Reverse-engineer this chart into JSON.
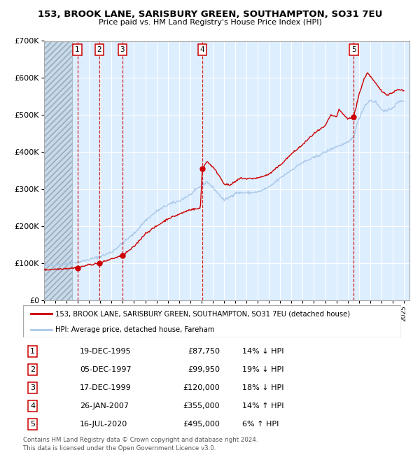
{
  "title": "153, BROOK LANE, SARISBURY GREEN, SOUTHAMPTON, SO31 7EU",
  "subtitle": "Price paid vs. HM Land Registry's House Price Index (HPI)",
  "legend_line1": "153, BROOK LANE, SARISBURY GREEN, SOUTHAMPTON, SO31 7EU (detached house)",
  "legend_line2": "HPI: Average price, detached house, Fareham",
  "footer1": "Contains HM Land Registry data © Crown copyright and database right 2024.",
  "footer2": "This data is licensed under the Open Government Licence v3.0.",
  "hpi_color": "#aac8e8",
  "price_color": "#cc0000",
  "dashed_color": "#cc0000",
  "background_plot": "#ddeeff",
  "ylim": [
    0,
    700000
  ],
  "yticks": [
    0,
    100000,
    200000,
    300000,
    400000,
    500000,
    600000,
    700000
  ],
  "ytick_labels": [
    "£0",
    "£100K",
    "£200K",
    "£300K",
    "£400K",
    "£500K",
    "£600K",
    "£700K"
  ],
  "xmin": 1993,
  "xmax": 2025.5,
  "transactions": [
    {
      "num": 1,
      "price": 87750,
      "x_year": 1995.96
    },
    {
      "num": 2,
      "price": 99950,
      "x_year": 1997.92
    },
    {
      "num": 3,
      "price": 120000,
      "x_year": 1999.96
    },
    {
      "num": 4,
      "price": 355000,
      "x_year": 2007.07
    },
    {
      "num": 5,
      "price": 495000,
      "x_year": 2020.54
    }
  ],
  "table_rows": [
    {
      "num": 1,
      "date": "19-DEC-1995",
      "price": "£87,750",
      "pct": "14% ↓ HPI"
    },
    {
      "num": 2,
      "date": "05-DEC-1997",
      "price": "£99,950",
      "pct": "19% ↓ HPI"
    },
    {
      "num": 3,
      "date": "17-DEC-1999",
      "price": "£120,000",
      "pct": "18% ↓ HPI"
    },
    {
      "num": 4,
      "date": "26-JAN-2007",
      "price": "£355,000",
      "pct": "14% ↑ HPI"
    },
    {
      "num": 5,
      "date": "16-JUL-2020",
      "price": "£495,000",
      "pct": "6% ↑ HPI"
    }
  ],
  "hpi_anchors": [
    [
      1993.0,
      93000
    ],
    [
      1994.0,
      96000
    ],
    [
      1995.0,
      98000
    ],
    [
      1996.0,
      103000
    ],
    [
      1997.0,
      110000
    ],
    [
      1998.0,
      118000
    ],
    [
      1999.0,
      130000
    ],
    [
      2000.0,
      155000
    ],
    [
      2001.0,
      180000
    ],
    [
      2002.0,
      215000
    ],
    [
      2003.0,
      240000
    ],
    [
      2004.0,
      258000
    ],
    [
      2005.0,
      268000
    ],
    [
      2006.0,
      285000
    ],
    [
      2007.0,
      310000
    ],
    [
      2007.5,
      320000
    ],
    [
      2008.0,
      305000
    ],
    [
      2009.0,
      270000
    ],
    [
      2009.5,
      278000
    ],
    [
      2010.0,
      290000
    ],
    [
      2011.0,
      290000
    ],
    [
      2012.0,
      292000
    ],
    [
      2013.0,
      305000
    ],
    [
      2014.0,
      330000
    ],
    [
      2015.0,
      352000
    ],
    [
      2016.0,
      372000
    ],
    [
      2017.0,
      385000
    ],
    [
      2018.0,
      400000
    ],
    [
      2019.0,
      415000
    ],
    [
      2020.0,
      425000
    ],
    [
      2020.5,
      440000
    ],
    [
      2021.0,
      490000
    ],
    [
      2021.5,
      525000
    ],
    [
      2022.0,
      540000
    ],
    [
      2022.5,
      535000
    ],
    [
      2023.0,
      515000
    ],
    [
      2023.5,
      510000
    ],
    [
      2024.0,
      520000
    ],
    [
      2024.5,
      535000
    ],
    [
      2025.0,
      540000
    ]
  ],
  "red_anchors": [
    [
      1993.0,
      82000
    ],
    [
      1994.0,
      84000
    ],
    [
      1995.0,
      86000
    ],
    [
      1995.96,
      87750
    ],
    [
      1997.0,
      96000
    ],
    [
      1997.92,
      99950
    ],
    [
      1999.0,
      112000
    ],
    [
      1999.96,
      120000
    ],
    [
      2001.0,
      145000
    ],
    [
      2002.0,
      180000
    ],
    [
      2003.0,
      200000
    ],
    [
      2004.0,
      220000
    ],
    [
      2005.0,
      232000
    ],
    [
      2006.0,
      245000
    ],
    [
      2006.9,
      248000
    ],
    [
      2007.07,
      355000
    ],
    [
      2007.5,
      375000
    ],
    [
      2008.0,
      360000
    ],
    [
      2008.5,
      340000
    ],
    [
      2009.0,
      315000
    ],
    [
      2009.5,
      310000
    ],
    [
      2010.0,
      320000
    ],
    [
      2010.5,
      330000
    ],
    [
      2011.0,
      328000
    ],
    [
      2012.0,
      330000
    ],
    [
      2013.0,
      340000
    ],
    [
      2014.0,
      365000
    ],
    [
      2015.0,
      395000
    ],
    [
      2016.0,
      420000
    ],
    [
      2017.0,
      450000
    ],
    [
      2018.0,
      470000
    ],
    [
      2018.5,
      500000
    ],
    [
      2019.0,
      495000
    ],
    [
      2019.25,
      515000
    ],
    [
      2019.5,
      505000
    ],
    [
      2020.0,
      490000
    ],
    [
      2020.54,
      495000
    ],
    [
      2021.0,
      555000
    ],
    [
      2021.5,
      600000
    ],
    [
      2021.75,
      615000
    ],
    [
      2022.0,
      605000
    ],
    [
      2022.25,
      595000
    ],
    [
      2022.5,
      585000
    ],
    [
      2023.0,
      565000
    ],
    [
      2023.5,
      555000
    ],
    [
      2024.0,
      560000
    ],
    [
      2024.5,
      570000
    ],
    [
      2025.0,
      565000
    ]
  ]
}
